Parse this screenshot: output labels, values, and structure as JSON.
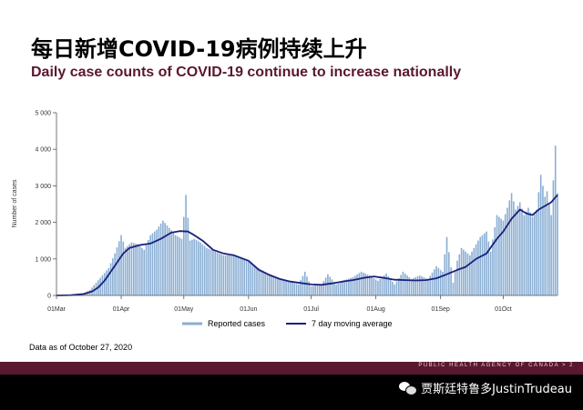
{
  "slide": {
    "title_cn": "每日新增COVID-19病例持续上升",
    "title_en": "Daily case counts of COVID-19 continue to increase nationally",
    "footnote": "Data as of October 27, 2020",
    "agency": "PUBLIC HEALTH AGENCY OF CANADA >",
    "page_number": "2",
    "watermark": "贾斯廷特鲁多JustinTrudeau"
  },
  "colors": {
    "bars": "#8aaed3",
    "line": "#1c1f7a",
    "brand": "#5a1730"
  },
  "chart_data": {
    "type": "bar",
    "title": "",
    "xlabel": "",
    "ylabel": "Number of cases",
    "ylim": [
      0,
      5000
    ],
    "yticks": [
      0,
      1000,
      2000,
      3000,
      4000,
      5000
    ],
    "ytick_labels": [
      "0",
      "1 000",
      "2 000",
      "3 000",
      "4 000",
      "5 000"
    ],
    "x_start": "2020-03-01",
    "x_end": "2020-10-27",
    "xtick_labels": [
      "01Mar",
      "01Apr",
      "01May",
      "01Jun",
      "01Jul",
      "01Aug",
      "01Sep",
      "01Oct"
    ],
    "xtick_dates": [
      "2020-03-01",
      "2020-04-01",
      "2020-05-01",
      "2020-06-01",
      "2020-07-01",
      "2020-08-01",
      "2020-09-01",
      "2020-10-01"
    ],
    "legend": {
      "position": "bottom",
      "entries": [
        "Reported cases",
        "7 day moving average"
      ]
    },
    "series": [
      {
        "name": "Reported cases",
        "kind": "bar",
        "points": [
          [
            "2020-03-01",
            0
          ],
          [
            "2020-03-05",
            5
          ],
          [
            "2020-03-10",
            20
          ],
          [
            "2020-03-14",
            60
          ],
          [
            "2020-03-17",
            150
          ],
          [
            "2020-03-20",
            350
          ],
          [
            "2020-03-23",
            550
          ],
          [
            "2020-03-26",
            750
          ],
          [
            "2020-03-29",
            1150
          ],
          [
            "2020-04-01",
            1650
          ],
          [
            "2020-04-03",
            1300
          ],
          [
            "2020-04-06",
            1450
          ],
          [
            "2020-04-09",
            1400
          ],
          [
            "2020-04-12",
            1250
          ],
          [
            "2020-04-15",
            1650
          ],
          [
            "2020-04-18",
            1800
          ],
          [
            "2020-04-21",
            2050
          ],
          [
            "2020-04-24",
            1850
          ],
          [
            "2020-04-27",
            1650
          ],
          [
            "2020-04-30",
            1550
          ],
          [
            "2020-05-02",
            2750
          ],
          [
            "2020-05-04",
            1500
          ],
          [
            "2020-05-06",
            1550
          ],
          [
            "2020-05-09",
            1450
          ],
          [
            "2020-05-12",
            1300
          ],
          [
            "2020-05-16",
            1200
          ],
          [
            "2020-05-20",
            1100
          ],
          [
            "2020-05-25",
            1100
          ],
          [
            "2020-05-30",
            1000
          ],
          [
            "2020-06-04",
            800
          ],
          [
            "2020-06-09",
            650
          ],
          [
            "2020-06-14",
            500
          ],
          [
            "2020-06-19",
            400
          ],
          [
            "2020-06-25",
            300
          ],
          [
            "2020-06-28",
            650
          ],
          [
            "2020-07-01",
            250
          ],
          [
            "2020-07-06",
            300
          ],
          [
            "2020-07-09",
            580
          ],
          [
            "2020-07-13",
            300
          ],
          [
            "2020-07-17",
            420
          ],
          [
            "2020-07-21",
            500
          ],
          [
            "2020-07-25",
            650
          ],
          [
            "2020-07-29",
            550
          ],
          [
            "2020-08-02",
            400
          ],
          [
            "2020-08-06",
            600
          ],
          [
            "2020-08-10",
            300
          ],
          [
            "2020-08-14",
            650
          ],
          [
            "2020-08-18",
            450
          ],
          [
            "2020-08-22",
            550
          ],
          [
            "2020-08-26",
            450
          ],
          [
            "2020-08-30",
            800
          ],
          [
            "2020-09-02",
            650
          ],
          [
            "2020-09-04",
            1600
          ],
          [
            "2020-09-07",
            350
          ],
          [
            "2020-09-09",
            950
          ],
          [
            "2020-09-11",
            1300
          ],
          [
            "2020-09-15",
            1100
          ],
          [
            "2020-09-18",
            1400
          ],
          [
            "2020-09-20",
            1600
          ],
          [
            "2020-09-23",
            1750
          ],
          [
            "2020-09-25",
            1200
          ],
          [
            "2020-09-28",
            2200
          ],
          [
            "2020-10-01",
            2050
          ],
          [
            "2020-10-03",
            2400
          ],
          [
            "2020-10-05",
            2800
          ],
          [
            "2020-10-07",
            2350
          ],
          [
            "2020-10-09",
            2550
          ],
          [
            "2020-10-11",
            2200
          ],
          [
            "2020-10-13",
            2400
          ],
          [
            "2020-10-15",
            2150
          ],
          [
            "2020-10-17",
            2350
          ],
          [
            "2020-10-19",
            3300
          ],
          [
            "2020-10-21",
            2700
          ],
          [
            "2020-10-22",
            2850
          ],
          [
            "2020-10-24",
            2200
          ],
          [
            "2020-10-26",
            4100
          ],
          [
            "2020-10-27",
            2800
          ]
        ]
      },
      {
        "name": "7 day moving average",
        "kind": "line",
        "points": [
          [
            "2020-03-01",
            0
          ],
          [
            "2020-03-08",
            10
          ],
          [
            "2020-03-14",
            40
          ],
          [
            "2020-03-18",
            110
          ],
          [
            "2020-03-21",
            220
          ],
          [
            "2020-03-24",
            400
          ],
          [
            "2020-03-27",
            650
          ],
          [
            "2020-03-30",
            900
          ],
          [
            "2020-04-02",
            1150
          ],
          [
            "2020-04-05",
            1300
          ],
          [
            "2020-04-10",
            1380
          ],
          [
            "2020-04-15",
            1420
          ],
          [
            "2020-04-20",
            1550
          ],
          [
            "2020-04-25",
            1720
          ],
          [
            "2020-04-29",
            1760
          ],
          [
            "2020-05-03",
            1750
          ],
          [
            "2020-05-06",
            1650
          ],
          [
            "2020-05-10",
            1500
          ],
          [
            "2020-05-15",
            1250
          ],
          [
            "2020-05-20",
            1150
          ],
          [
            "2020-05-25",
            1100
          ],
          [
            "2020-06-01",
            950
          ],
          [
            "2020-06-06",
            700
          ],
          [
            "2020-06-11",
            560
          ],
          [
            "2020-06-16",
            450
          ],
          [
            "2020-06-21",
            380
          ],
          [
            "2020-06-26",
            340
          ],
          [
            "2020-07-01",
            300
          ],
          [
            "2020-07-06",
            290
          ],
          [
            "2020-07-11",
            330
          ],
          [
            "2020-07-16",
            380
          ],
          [
            "2020-07-21",
            420
          ],
          [
            "2020-07-26",
            480
          ],
          [
            "2020-07-31",
            520
          ],
          [
            "2020-08-05",
            480
          ],
          [
            "2020-08-10",
            430
          ],
          [
            "2020-08-15",
            420
          ],
          [
            "2020-08-20",
            410
          ],
          [
            "2020-08-25",
            420
          ],
          [
            "2020-08-30",
            470
          ],
          [
            "2020-09-04",
            580
          ],
          [
            "2020-09-09",
            700
          ],
          [
            "2020-09-13",
            780
          ],
          [
            "2020-09-18",
            1000
          ],
          [
            "2020-09-23",
            1150
          ],
          [
            "2020-09-28",
            1550
          ],
          [
            "2020-10-01",
            1750
          ],
          [
            "2020-10-05",
            2100
          ],
          [
            "2020-10-09",
            2350
          ],
          [
            "2020-10-12",
            2250
          ],
          [
            "2020-10-15",
            2200
          ],
          [
            "2020-10-18",
            2350
          ],
          [
            "2020-10-21",
            2450
          ],
          [
            "2020-10-24",
            2550
          ],
          [
            "2020-10-27",
            2750
          ]
        ]
      }
    ]
  }
}
